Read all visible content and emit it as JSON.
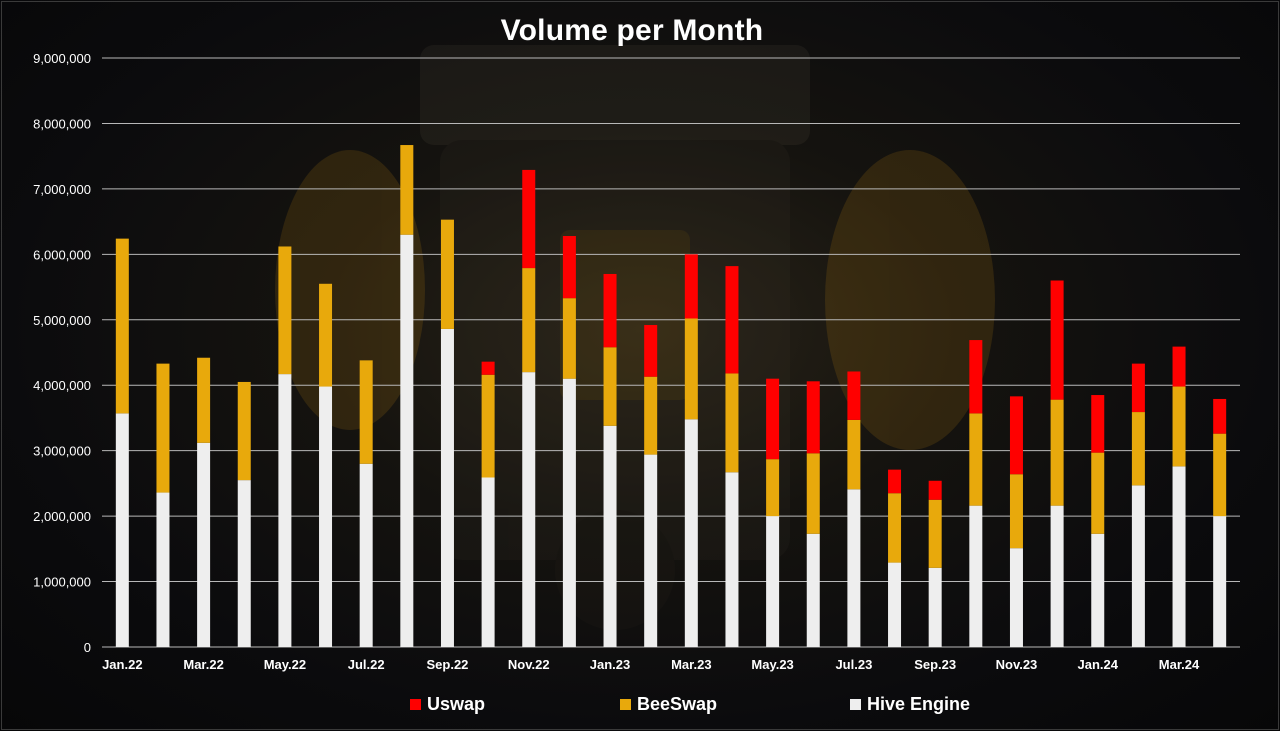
{
  "chart_data": {
    "type": "bar",
    "stacked": true,
    "title": "Volume per Month",
    "xlabel": "",
    "ylabel": "",
    "ylim": [
      0,
      9000000
    ],
    "y_ticks": [
      "0",
      "1,000,000",
      "2,000,000",
      "3,000,000",
      "4,000,000",
      "5,000,000",
      "6,000,000",
      "7,000,000",
      "8,000,000",
      "9,000,000"
    ],
    "categories": [
      "Jan.22",
      "Feb.22",
      "Mar.22",
      "Apr.22",
      "May.22",
      "Jun.22",
      "Jul.22",
      "Aug.22",
      "Sep.22",
      "Oct.22",
      "Nov.22",
      "Dec.22",
      "Jan.23",
      "Feb.23",
      "Mar.23",
      "Apr.23",
      "May.23",
      "Jun.23",
      "Jul.23",
      "Aug.23",
      "Sep.23",
      "Oct.23",
      "Nov.23",
      "Dec.23",
      "Jan.24",
      "Feb.24",
      "Mar.24",
      "Apr.24"
    ],
    "x_tick_labels": [
      "Jan.22",
      "",
      "Mar.22",
      "",
      "May.22",
      "",
      "Jul.22",
      "",
      "Sep.22",
      "",
      "Nov.22",
      "",
      "Jan.23",
      "",
      "Mar.23",
      "",
      "May.23",
      "",
      "Jul.23",
      "",
      "Sep.23",
      "",
      "Nov.23",
      "",
      "Jan.24",
      "",
      "Mar.24",
      ""
    ],
    "series": [
      {
        "name": "Hive Engine",
        "color": "#eeeeee",
        "values": [
          3570000,
          2360000,
          3120000,
          2550000,
          4170000,
          3980000,
          2800000,
          6300000,
          4860000,
          2590000,
          4200000,
          4100000,
          3380000,
          2940000,
          3480000,
          2670000,
          2000000,
          1730000,
          2410000,
          1290000,
          1210000,
          2160000,
          1510000,
          2160000,
          1730000,
          2470000,
          2760000,
          2000000
        ]
      },
      {
        "name": "BeeSwap",
        "color": "#e8a90c",
        "values": [
          2670000,
          1970000,
          1300000,
          1500000,
          1950000,
          1570000,
          1580000,
          1370000,
          1670000,
          1570000,
          1590000,
          1230000,
          1200000,
          1190000,
          1540000,
          1510000,
          870000,
          1230000,
          1060000,
          1060000,
          1040000,
          1410000,
          1130000,
          1620000,
          1240000,
          1120000,
          1220000,
          1260000
        ]
      },
      {
        "name": "Uswap",
        "color": "#ff0000",
        "values": [
          0,
          0,
          0,
          0,
          0,
          0,
          0,
          0,
          0,
          200000,
          1500000,
          950000,
          1120000,
          790000,
          980000,
          1640000,
          1230000,
          1100000,
          740000,
          360000,
          290000,
          1120000,
          1190000,
          1820000,
          880000,
          740000,
          610000,
          530000
        ]
      }
    ],
    "legend_order": [
      "Uswap",
      "BeeSwap",
      "Hive Engine"
    ],
    "legend_position": "bottom",
    "grid": true,
    "colors": {
      "grid": "#b8b8b8",
      "text": "#ffffff",
      "background": "#0b0b0d"
    }
  }
}
